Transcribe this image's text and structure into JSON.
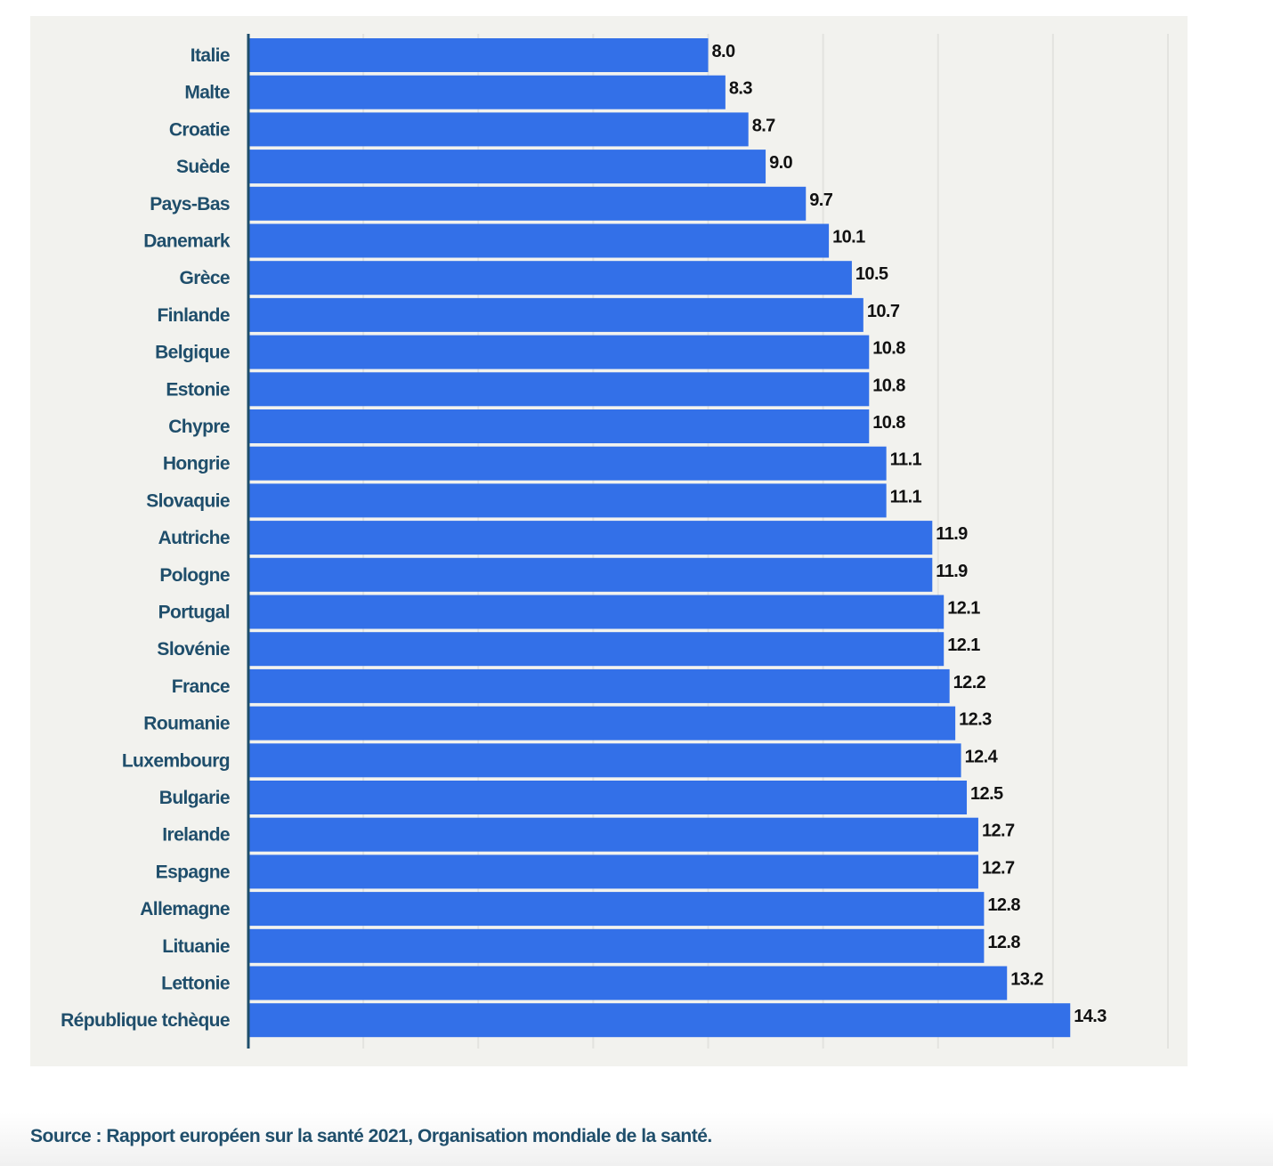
{
  "chart_data": {
    "type": "bar",
    "orientation": "horizontal",
    "categories": [
      "Italie",
      "Malte",
      "Croatie",
      "Suède",
      "Pays-Bas",
      "Danemark",
      "Grèce",
      "Finlande",
      "Belgique",
      "Estonie",
      "Chypre",
      "Hongrie",
      "Slovaquie",
      "Autriche",
      "Pologne",
      "Portugal",
      "Slovénie",
      "France",
      "Roumanie",
      "Luxembourg",
      "Bulgarie",
      "Irelande",
      "Espagne",
      "Allemagne",
      "Lituanie",
      "Lettonie",
      "République tchèque"
    ],
    "values": [
      8.0,
      8.3,
      8.7,
      9.0,
      9.7,
      10.1,
      10.5,
      10.7,
      10.8,
      10.8,
      10.8,
      11.1,
      11.1,
      11.9,
      11.9,
      12.1,
      12.1,
      12.2,
      12.3,
      12.4,
      12.5,
      12.7,
      12.7,
      12.8,
      12.8,
      13.2,
      14.3
    ],
    "xlim": [
      0,
      16
    ],
    "grid": true,
    "grid_step": 2,
    "data_labels": true,
    "colors": {
      "bar": "#3370e8",
      "background": "#f2f2ee",
      "category_text": "#1f4e6b",
      "axis": "#1f4e6b"
    }
  },
  "source": "Source : Rapport européen sur la santé 2021, Organisation mondiale de la santé."
}
